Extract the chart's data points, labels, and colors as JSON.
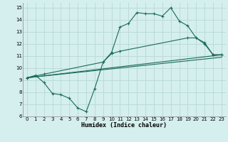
{
  "xlabel": "Humidex (Indice chaleur)",
  "background_color": "#d5eeee",
  "grid_color": "#b8d8d8",
  "line_color": "#1a6b5a",
  "xlim": [
    -0.5,
    23.5
  ],
  "ylim": [
    6,
    15.4
  ],
  "xticks": [
    0,
    1,
    2,
    3,
    4,
    5,
    6,
    7,
    8,
    9,
    10,
    11,
    12,
    13,
    14,
    15,
    16,
    17,
    18,
    19,
    20,
    21,
    22,
    23
  ],
  "yticks": [
    6,
    7,
    8,
    9,
    10,
    11,
    12,
    13,
    14,
    15
  ],
  "line1_x": [
    0,
    1,
    2,
    3,
    4,
    5,
    6,
    7,
    8,
    9,
    10,
    11,
    12,
    13,
    14,
    15,
    16,
    17,
    18,
    19,
    20,
    21,
    22,
    23
  ],
  "line1_y": [
    9.2,
    9.4,
    8.8,
    7.9,
    7.8,
    7.5,
    6.7,
    6.4,
    8.3,
    10.5,
    11.3,
    13.4,
    13.7,
    14.6,
    14.5,
    14.5,
    14.3,
    15.0,
    13.9,
    13.5,
    12.5,
    12.1,
    11.1,
    11.1
  ],
  "line2_x": [
    0,
    23
  ],
  "line2_y": [
    9.2,
    11.1
  ],
  "line3_x": [
    0,
    23
  ],
  "line3_y": [
    9.2,
    10.9
  ],
  "line4_x": [
    0,
    2,
    9,
    10,
    11,
    19,
    20,
    21,
    22,
    23
  ],
  "line4_y": [
    9.2,
    9.5,
    10.5,
    11.2,
    11.4,
    12.5,
    12.5,
    12.0,
    11.1,
    11.1
  ]
}
